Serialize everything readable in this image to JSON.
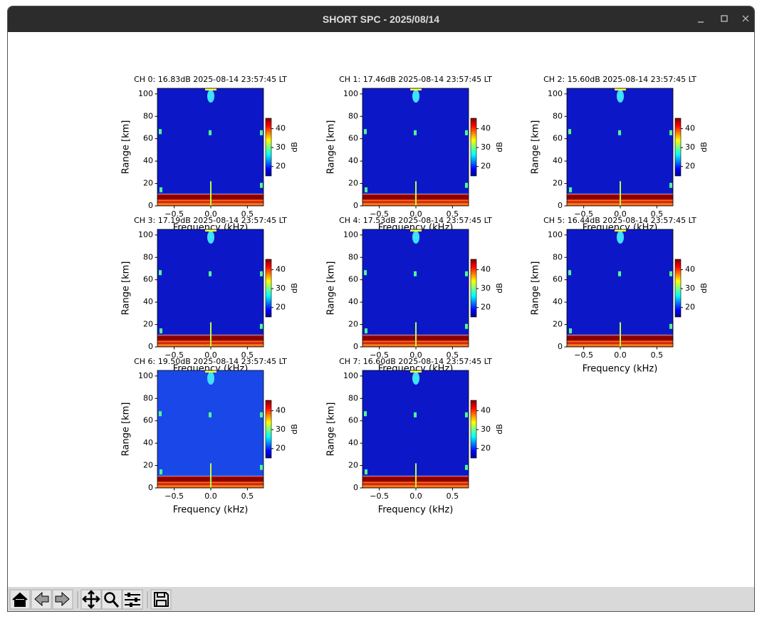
{
  "window": {
    "title": "SHORT SPC - 2025/08/14"
  },
  "panels": [
    {
      "title": "CH 0: 16.83dB 2025-08-14 23:57:45 LT",
      "xlabel": "Frequency (kHz)",
      "ylabel": "Range [km]",
      "xlim": [
        -0.73,
        0.72
      ],
      "ylim": [
        0,
        105
      ],
      "xticks": [
        {
          "value": -0.5,
          "label": "−0.5"
        },
        {
          "value": 0,
          "label": "0.0"
        },
        {
          "value": 0.5,
          "label": "0.5"
        }
      ],
      "yticks": [
        0,
        20,
        40,
        60,
        80,
        100
      ],
      "colorbar": {
        "label": "dB",
        "lim": [
          15,
          45.5
        ],
        "ticks": [
          20,
          30,
          40
        ]
      }
    },
    {
      "title": "CH 1: 17.46dB 2025-08-14 23:57:45 LT",
      "xlabel": "Frequency (kHz)",
      "ylabel": "Range [km]",
      "xlim": [
        -0.73,
        0.72
      ],
      "ylim": [
        0,
        105
      ],
      "xticks": [
        {
          "value": -0.5,
          "label": "−0.5"
        },
        {
          "value": 0,
          "label": "0.0"
        },
        {
          "value": 0.5,
          "label": "0.5"
        }
      ],
      "yticks": [
        0,
        20,
        40,
        60,
        80,
        100
      ],
      "colorbar": {
        "label": "dB",
        "lim": [
          15,
          45.5
        ],
        "ticks": [
          20,
          30,
          40
        ]
      }
    },
    {
      "title": "CH 2: 15.60dB 2025-08-14 23:57:45 LT",
      "xlabel": "Frequency (kHz)",
      "ylabel": "Range [km]",
      "xlim": [
        -0.73,
        0.72
      ],
      "ylim": [
        0,
        105
      ],
      "xticks": [
        {
          "value": -0.5,
          "label": "−0.5"
        },
        {
          "value": 0,
          "label": "0.0"
        },
        {
          "value": 0.5,
          "label": "0.5"
        }
      ],
      "yticks": [
        0,
        20,
        40,
        60,
        80,
        100
      ],
      "colorbar": {
        "label": "dB",
        "lim": [
          15,
          45.5
        ],
        "ticks": [
          20,
          30,
          40
        ]
      }
    },
    {
      "title": "CH 3: 17.19dB 2025-08-14 23:57:45 LT",
      "xlabel": "Frequency (kHz)",
      "ylabel": "Range [km]",
      "xlim": [
        -0.73,
        0.72
      ],
      "ylim": [
        0,
        105
      ],
      "xticks": [
        {
          "value": -0.5,
          "label": "−0.5"
        },
        {
          "value": 0,
          "label": "0.0"
        },
        {
          "value": 0.5,
          "label": "0.5"
        }
      ],
      "yticks": [
        0,
        20,
        40,
        60,
        80,
        100
      ],
      "colorbar": {
        "label": "dB",
        "lim": [
          15,
          45.5
        ],
        "ticks": [
          20,
          30,
          40
        ]
      }
    },
    {
      "title": "CH 4: 17.53dB 2025-08-14 23:57:45 LT",
      "xlabel": "Frequency (kHz)",
      "ylabel": "Range [km]",
      "xlim": [
        -0.73,
        0.72
      ],
      "ylim": [
        0,
        105
      ],
      "xticks": [
        {
          "value": -0.5,
          "label": "−0.5"
        },
        {
          "value": 0,
          "label": "0.0"
        },
        {
          "value": 0.5,
          "label": "0.5"
        }
      ],
      "yticks": [
        0,
        20,
        40,
        60,
        80,
        100
      ],
      "colorbar": {
        "label": "dB",
        "lim": [
          15,
          45.5
        ],
        "ticks": [
          20,
          30,
          40
        ]
      }
    },
    {
      "title": "CH 5: 16.44dB 2025-08-14 23:57:45 LT",
      "xlabel": "Frequency (kHz)",
      "ylabel": "Range [km]",
      "xlim": [
        -0.73,
        0.72
      ],
      "ylim": [
        0,
        105
      ],
      "xticks": [
        {
          "value": -0.5,
          "label": "−0.5"
        },
        {
          "value": 0,
          "label": "0.0"
        },
        {
          "value": 0.5,
          "label": "0.5"
        }
      ],
      "yticks": [
        0,
        20,
        40,
        60,
        80,
        100
      ],
      "colorbar": {
        "label": "dB",
        "lim": [
          15,
          45.5
        ],
        "ticks": [
          20,
          30,
          40
        ]
      }
    },
    {
      "title": "CH 6: 19.50dB 2025-08-14 23:57:45 LT",
      "xlabel": "Frequency (kHz)",
      "ylabel": "Range [km]",
      "xlim": [
        -0.73,
        0.72
      ],
      "ylim": [
        0,
        105
      ],
      "xticks": [
        {
          "value": -0.5,
          "label": "−0.5"
        },
        {
          "value": 0,
          "label": "0.0"
        },
        {
          "value": 0.5,
          "label": "0.5"
        }
      ],
      "yticks": [
        0,
        20,
        40,
        60,
        80,
        100
      ],
      "colorbar": {
        "label": "dB",
        "lim": [
          15,
          45.5
        ],
        "ticks": [
          20,
          30,
          40
        ]
      }
    },
    {
      "title": "CH 7: 16.60dB 2025-08-14 23:57:45 LT",
      "xlabel": "Frequency (kHz)",
      "ylabel": "Range [km]",
      "xlim": [
        -0.73,
        0.72
      ],
      "ylim": [
        0,
        105
      ],
      "xticks": [
        {
          "value": -0.5,
          "label": "−0.5"
        },
        {
          "value": 0,
          "label": "0.0"
        },
        {
          "value": 0.5,
          "label": "0.5"
        }
      ],
      "yticks": [
        0,
        20,
        40,
        60,
        80,
        100
      ],
      "colorbar": {
        "label": "dB",
        "lim": [
          15,
          45.5
        ],
        "ticks": [
          20,
          30,
          40
        ]
      }
    }
  ]
}
